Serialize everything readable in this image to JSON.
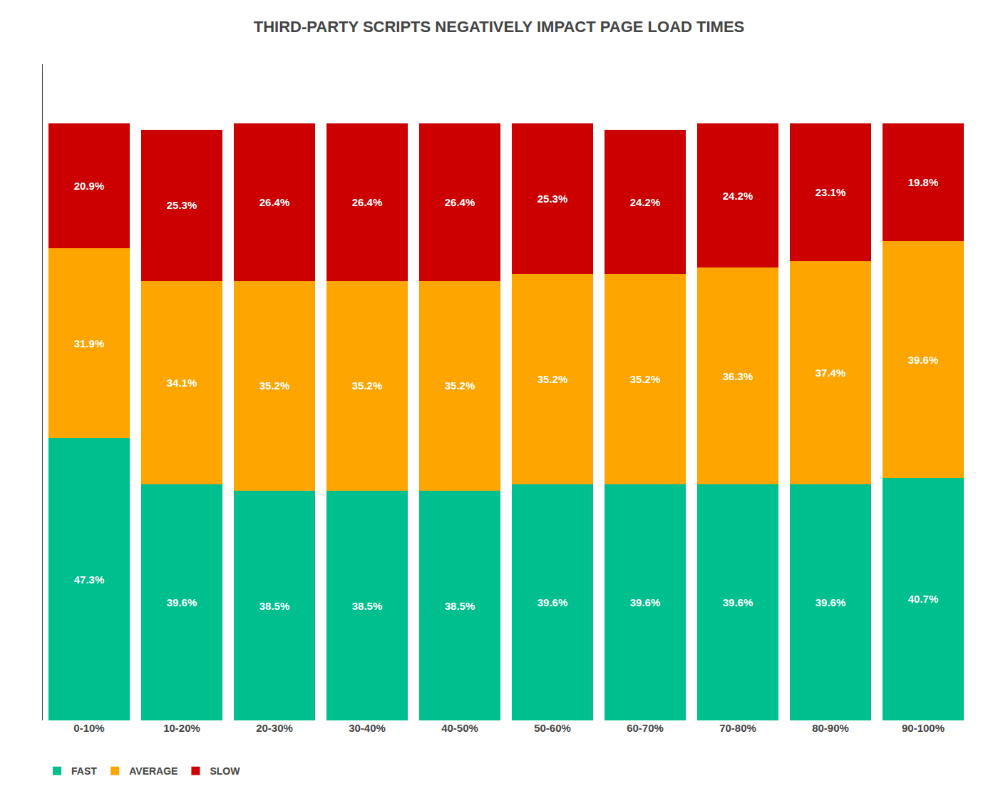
{
  "chart_data": {
    "type": "bar",
    "stacked": true,
    "title": "THIRD-PARTY SCRIPTS NEGATIVELY IMPACT PAGE LOAD TIMES",
    "categories": [
      "0-10%",
      "10-20%",
      "20-30%",
      "30-40%",
      "40-50%",
      "50-60%",
      "60-70%",
      "70-80%",
      "80-90%",
      "90-100%"
    ],
    "series": [
      {
        "name": "FAST",
        "color": "#00BF8F",
        "values": [
          47.3,
          39.6,
          38.5,
          38.5,
          38.5,
          39.6,
          39.6,
          39.6,
          39.6,
          40.7
        ],
        "value_labels": [
          "47.3%",
          "39.6%",
          "38.5%",
          "38.5%",
          "38.5%",
          "39.6%",
          "39.6%",
          "39.6%",
          "39.6%",
          "40.7%"
        ]
      },
      {
        "name": "AVERAGE",
        "color": "#FFA500",
        "values": [
          31.9,
          34.1,
          35.2,
          35.2,
          35.2,
          35.2,
          35.2,
          36.3,
          37.4,
          39.6
        ],
        "value_labels": [
          "31.9%",
          "34.1%",
          "35.2%",
          "35.2%",
          "35.2%",
          "35.2%",
          "35.2%",
          "36.3%",
          "37.4%",
          "39.6%"
        ]
      },
      {
        "name": "SLOW",
        "color": "#CC0000",
        "values": [
          20.9,
          25.3,
          26.4,
          26.4,
          26.4,
          25.3,
          24.2,
          24.2,
          23.1,
          19.8
        ],
        "value_labels": [
          "20.9%",
          "25.3%",
          "26.4%",
          "26.4%",
          "26.4%",
          "25.3%",
          "24.2%",
          "24.2%",
          "23.1%",
          "19.8%"
        ]
      }
    ],
    "ylim": [
      0,
      110
    ],
    "data_labels": true,
    "tick_labels": "x",
    "grid": false,
    "legend": "lower left"
  }
}
